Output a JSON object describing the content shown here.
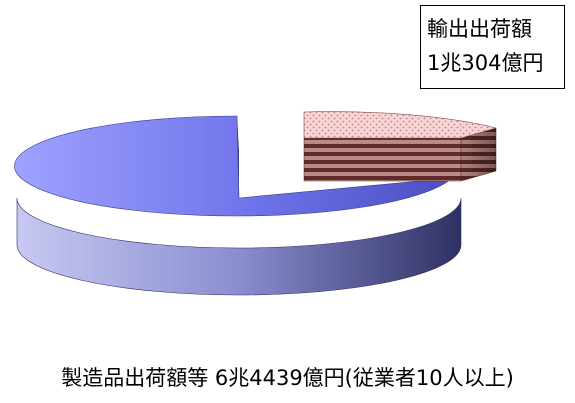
{
  "chart_data": {
    "type": "pie",
    "three_d": true,
    "slices": [
      {
        "label": "輸出出荷額",
        "value_text": "1兆304億円",
        "value": 10304,
        "exploded": true,
        "fill": "pink-dotted",
        "side_pattern": "brown-striped"
      },
      {
        "label": "製造品出荷額等",
        "value_text": "6兆4439億円",
        "value": 54135,
        "note": "(従業者10人以上)",
        "exploded": false,
        "fill": "blue-gradient"
      }
    ],
    "total": 64439,
    "unit": "億円"
  },
  "callout": {
    "line1": "輸出出荷額",
    "line2": "1兆304億円"
  },
  "caption": {
    "text": "製造品出荷額等 6兆4439億円(従業者10人以上)"
  },
  "colors": {
    "main_top_light": "#a9acff",
    "main_top_dark": "#5f63d6",
    "main_side_light": "#b6b9ee",
    "main_side_dark": "#3b3e78",
    "slice_pink": "#f4c2c2",
    "slice_dots": "#d98a92",
    "slice_side_dark": "#6b2c2c",
    "slice_side_light": "#c08b80"
  }
}
